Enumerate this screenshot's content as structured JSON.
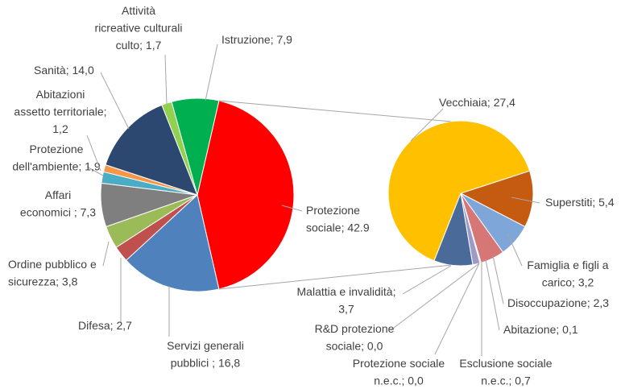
{
  "chart_data": [
    {
      "type": "pie",
      "labels": [
        "Protezione\nsociale; 42.9",
        "Servizi generali\npubblici ; 16,8",
        "Difesa; 2,7",
        "Ordine pubblico e\nsicurezza; 3,8",
        "Affari\neconomici ; 7,3",
        "Protezione\ndell'ambiente; 1,9",
        "Abitazioni\nassetto territoriale;\n1,2",
        "Sanità; 14,0",
        "Attività\nricreative culturali\nculto; 1,7",
        "Istruzione; 7,9"
      ],
      "values": [
        42.9,
        16.8,
        2.7,
        3.8,
        7.3,
        1.9,
        1.2,
        14.0,
        1.7,
        7.9
      ],
      "colors": [
        "#ff0000",
        "#4f81bd",
        "#c0504d",
        "#9bbb59",
        "#7f7f7f",
        "#4bacc6",
        "#f79646",
        "#2c4770",
        "#92d050",
        "#00b050"
      ]
    },
    {
      "type": "pie",
      "labels": [
        "Superstiti; 5,4",
        "Famiglia e figli a\ncarico; 3,2",
        "Disoccupazione; 2,3",
        "Abitazione; 0,1",
        "Esclusione sociale\nn.e.c.; 0,7",
        "Protezione sociale\nn.e.c.; 0,0",
        "R&D protezione\nsociale; 0,0",
        "Malattia e invalidità;\n3,7",
        "Vecchiaia; 27,4"
      ],
      "values": [
        5.4,
        3.2,
        2.3,
        0.1,
        0.7,
        0.0,
        0.0,
        3.7,
        27.4
      ],
      "colors": [
        "#c55a11",
        "#7ea6d8",
        "#d67676",
        "#b3c97a",
        "#9e9ac8",
        "#4bacc6",
        "#f4b183",
        "#4a6a9a",
        "#ffc000"
      ]
    }
  ]
}
